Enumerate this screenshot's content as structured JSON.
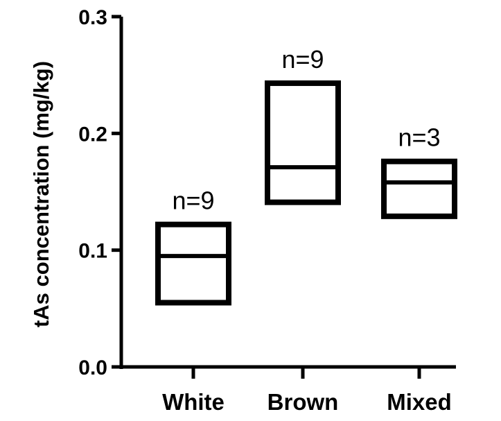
{
  "chart_data": {
    "type": "box",
    "ylabel": "tAs concentration (mg/kg)",
    "xlabel": "",
    "ylim": [
      0,
      0.3
    ],
    "yticks": [
      "0.0",
      "0.1",
      "0.2",
      "0.3"
    ],
    "ytick_values": [
      0,
      0.1,
      0.2,
      0.3
    ],
    "categories": [
      "White",
      "Brown",
      "Mixed"
    ],
    "boxes": [
      {
        "category": "White",
        "min": 0.055,
        "median": 0.095,
        "max": 0.122,
        "n_label": "n=9"
      },
      {
        "category": "Brown",
        "min": 0.141,
        "median": 0.171,
        "max": 0.243,
        "n_label": "n=9"
      },
      {
        "category": "Mixed",
        "min": 0.129,
        "median": 0.158,
        "max": 0.176,
        "n_label": "n=3"
      }
    ],
    "grid": false,
    "legend": "none"
  }
}
